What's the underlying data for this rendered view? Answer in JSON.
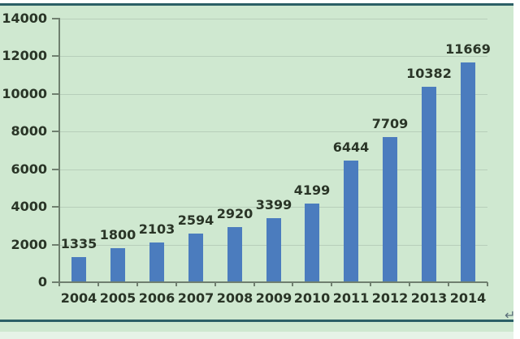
{
  "panel": {
    "background": "#cfe8d0",
    "border_color": "#2b5f66",
    "footer_background": "#cfe8d0"
  },
  "icons": {
    "carriage_return": "↵"
  },
  "chart_data": {
    "type": "bar",
    "title": "",
    "xlabel": "",
    "ylabel": "",
    "categories": [
      "2004",
      "2005",
      "2006",
      "2007",
      "2008",
      "2009",
      "2010",
      "2011",
      "2012",
      "2013",
      "2014"
    ],
    "values": [
      1335,
      1800,
      2103,
      2594,
      2920,
      3399,
      4199,
      6444,
      7709,
      10382,
      11669
    ],
    "value_labels": [
      "1335",
      "1800",
      "2103",
      "2594",
      "2920",
      "3399",
      "4199",
      "6444",
      "7709",
      "10382",
      "11669"
    ],
    "ylim": [
      0,
      14000
    ],
    "ytick_step": 2000,
    "y_tick_labels": [
      "0",
      "2000",
      "4000",
      "6000",
      "8000",
      "10000",
      "12000",
      "14000"
    ],
    "grid": true,
    "legend": false,
    "show_value_labels": true,
    "bar_color": "#4b7cbe",
    "text_color": "#2a3527",
    "gridline_color": "#b7ceba",
    "axis_color": "#6f7f6f"
  }
}
